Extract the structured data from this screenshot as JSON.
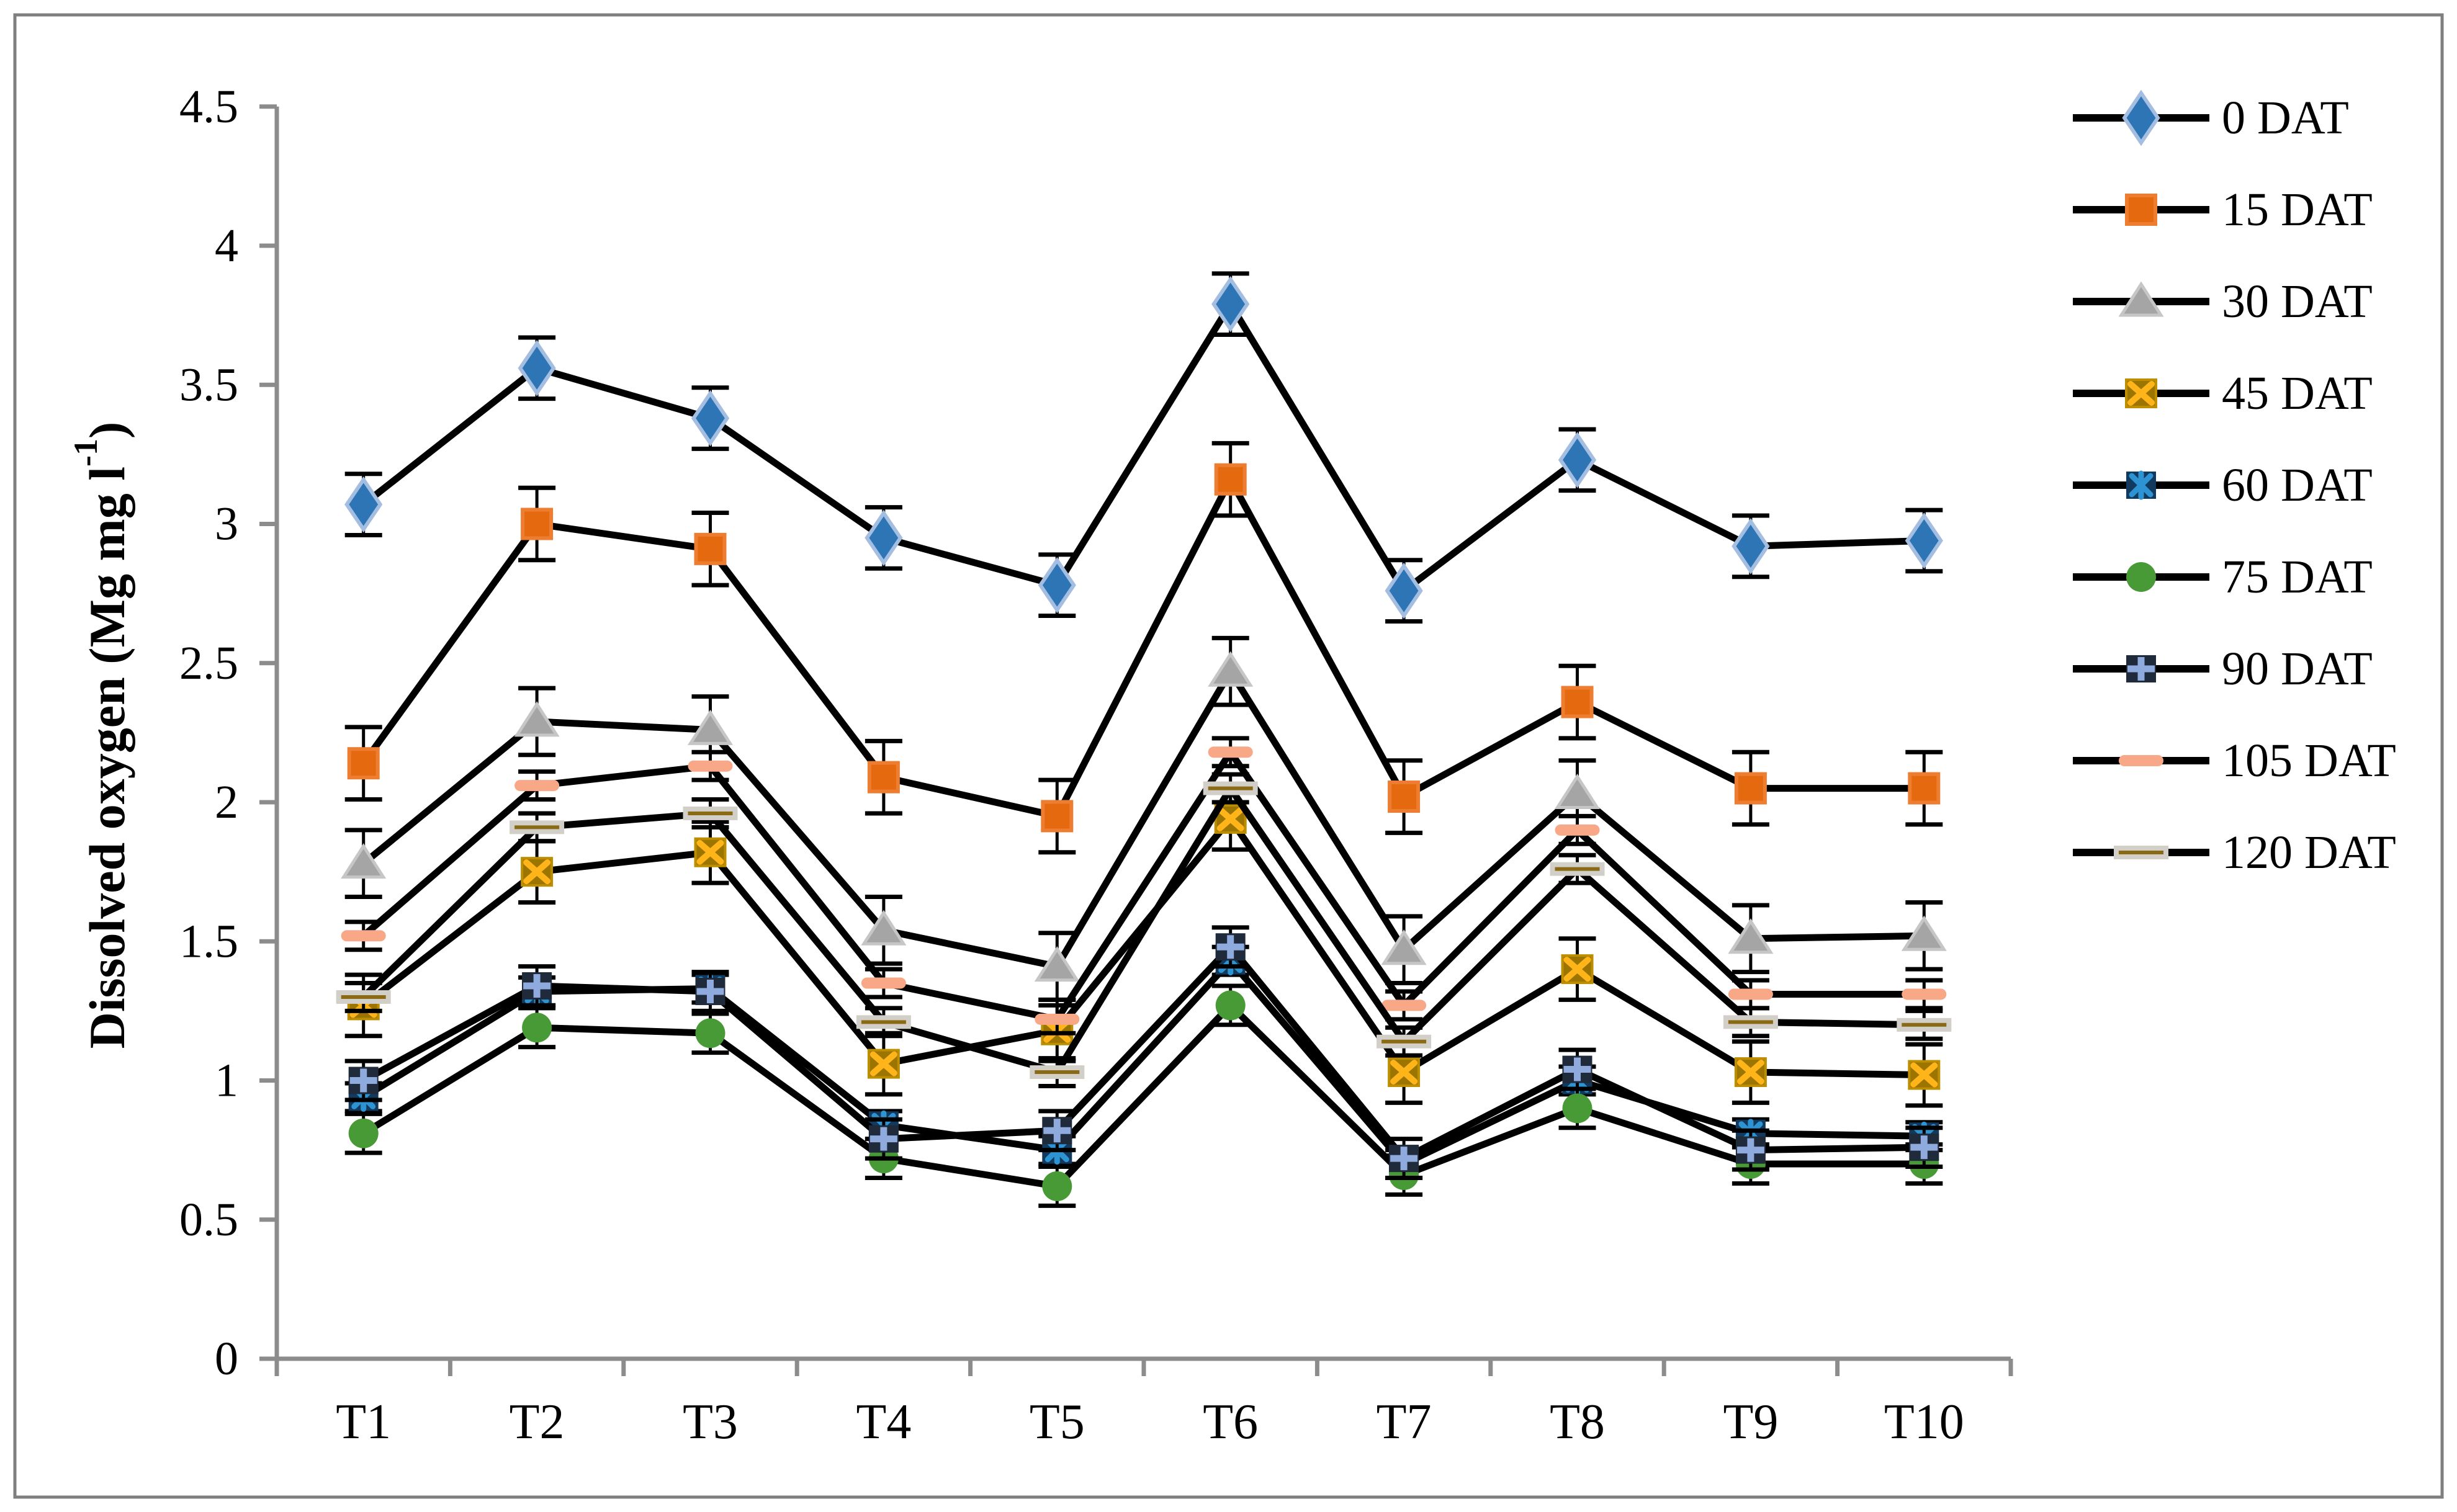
{
  "figure": {
    "background": "#FFFFFF",
    "border_color": "#7F7F7F"
  },
  "chart_data": {
    "type": "line",
    "title": "",
    "ylabel_main": "Dissolved oxygen (Mg mg l",
    "ylabel_sup": "-1",
    "ylabel_close": ")",
    "categories": [
      "T1",
      "T2",
      "T3",
      "T4",
      "T5",
      "T6",
      "T7",
      "T8",
      "T9",
      "T10"
    ],
    "y_ticks": [
      0,
      0.5,
      1,
      1.5,
      2,
      2.5,
      3,
      3.5,
      4,
      4.5
    ],
    "ylim": [
      0,
      4.5
    ],
    "grid": false,
    "legend_position": "right",
    "line_color": "#000000",
    "axis_color": "#8C8C8C",
    "error_bar_color": "#000000",
    "series": [
      {
        "name": "0 DAT",
        "marker": "diamond",
        "fill": "#2E75B6",
        "stroke": "#A3BEE0",
        "accent": "",
        "error": 0.11,
        "values": [
          3.07,
          3.56,
          3.38,
          2.95,
          2.78,
          3.79,
          2.76,
          3.23,
          2.92,
          2.94
        ]
      },
      {
        "name": "15 DAT",
        "marker": "square",
        "fill": "#E56A0F",
        "stroke": "#ED7D31",
        "accent": "",
        "error": 0.13,
        "values": [
          2.14,
          3.0,
          2.91,
          2.09,
          1.95,
          3.16,
          2.02,
          2.36,
          2.05,
          2.05
        ]
      },
      {
        "name": "30 DAT",
        "marker": "triangle",
        "fill": "#A5A5A5",
        "stroke": "#C6C6C6",
        "accent": "",
        "error": 0.12,
        "values": [
          1.78,
          2.29,
          2.26,
          1.54,
          1.41,
          2.47,
          1.47,
          2.03,
          1.51,
          1.52
        ]
      },
      {
        "name": "45 DAT",
        "marker": "square-x",
        "fill": "#9C7500",
        "stroke": "#BC8E00",
        "accent": "#FFB419",
        "error": 0.11,
        "values": [
          1.27,
          1.75,
          1.82,
          1.06,
          1.18,
          1.94,
          1.03,
          1.4,
          1.03,
          1.02
        ]
      },
      {
        "name": "60 DAT",
        "marker": "square-star",
        "fill": "#123A5E",
        "stroke": "#123A5E",
        "accent": "#2D93D2",
        "error": 0.05,
        "values": [
          0.94,
          1.32,
          1.33,
          0.84,
          0.75,
          1.43,
          0.7,
          1.0,
          0.81,
          0.8
        ]
      },
      {
        "name": "75 DAT",
        "marker": "circle",
        "fill": "#479A35",
        "stroke": "#479A35",
        "accent": "",
        "error": 0.07,
        "values": [
          0.81,
          1.19,
          1.17,
          0.72,
          0.62,
          1.27,
          0.66,
          0.9,
          0.7,
          0.7
        ]
      },
      {
        "name": "90 DAT",
        "marker": "square-plus",
        "fill": "#1F2A3B",
        "stroke": "#1F2A3B",
        "accent": "#8FAADC",
        "error": 0.07,
        "values": [
          1.0,
          1.34,
          1.32,
          0.79,
          0.82,
          1.48,
          0.72,
          1.04,
          0.75,
          0.76
        ]
      },
      {
        "name": "105 DAT",
        "marker": "dash",
        "fill": "#F8A787",
        "stroke": "#F8A787",
        "accent": "",
        "error": 0.05,
        "values": [
          1.52,
          2.06,
          2.13,
          1.35,
          1.22,
          2.18,
          1.27,
          1.9,
          1.31,
          1.31
        ]
      },
      {
        "name": "120 DAT",
        "marker": "long-dash",
        "fill": "#D2CFC9",
        "stroke": "#D2CFC9",
        "accent": "#8A6A15",
        "error": 0.05,
        "values": [
          1.3,
          1.91,
          1.96,
          1.21,
          1.03,
          2.05,
          1.14,
          1.76,
          1.21,
          1.2
        ]
      }
    ]
  }
}
